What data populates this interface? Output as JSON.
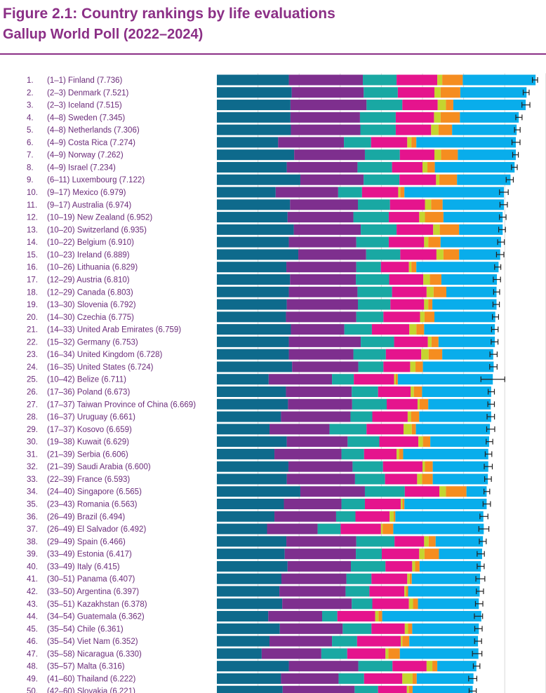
{
  "header": {
    "title": "Figure 2.1: Country rankings by life evaluations",
    "subtitle": "Gallup World Poll (2022–2024)"
  },
  "colors": {
    "accent": "#8b2f86",
    "segments": [
      "#0e6a8c",
      "#7e2f8e",
      "#19a8a3",
      "#e5148d",
      "#c5d52f",
      "#f58d20",
      "#09adeb"
    ],
    "error_bar": "#222222"
  },
  "chart_data": {
    "type": "bar",
    "orientation": "horizontal",
    "stacked": true,
    "title": "Figure 2.1: Country rankings by life evaluations",
    "subtitle": "Gallup World Poll (2022–2024)",
    "categories": [
      "Finland",
      "Denmark",
      "Iceland",
      "Sweden",
      "Netherlands",
      "Costa Rica",
      "Norway",
      "Israel",
      "Luxembourg",
      "Mexico",
      "Australia",
      "New Zealand",
      "Switzerland",
      "Belgium",
      "Ireland",
      "Lithuania",
      "Austria",
      "Canada",
      "Slovenia",
      "Czechia",
      "United Arab Emirates",
      "Germany",
      "United Kingdom",
      "United States",
      "Belize",
      "Poland",
      "Taiwan Province of China",
      "Uruguay",
      "Kosovo",
      "Kuwait",
      "Serbia",
      "Saudi Arabia",
      "France",
      "Singapore",
      "Romania",
      "Brazil",
      "El Salvador",
      "Spain",
      "Estonia",
      "Italy",
      "Panama",
      "Argentina",
      "Kazakhstan",
      "Guatemala",
      "Chile",
      "Viet Nam",
      "Nicaragua",
      "Malta",
      "Thailand",
      "Slovakia"
    ],
    "rows": [
      {
        "rank": "1.",
        "range": "(1–1)",
        "country": "Finland",
        "score": "7.736"
      },
      {
        "rank": "2.",
        "range": "(2–3)",
        "country": "Denmark",
        "score": "7.521"
      },
      {
        "rank": "3.",
        "range": "(2–3)",
        "country": "Iceland",
        "score": "7.515"
      },
      {
        "rank": "4.",
        "range": "(4–8)",
        "country": "Sweden",
        "score": "7.345"
      },
      {
        "rank": "5.",
        "range": "(4–8)",
        "country": "Netherlands",
        "score": "7.306"
      },
      {
        "rank": "6.",
        "range": "(4–9)",
        "country": "Costa Rica",
        "score": "7.274"
      },
      {
        "rank": "7.",
        "range": "(4–9)",
        "country": "Norway",
        "score": "7.262"
      },
      {
        "rank": "8.",
        "range": "(4–9)",
        "country": "Israel",
        "score": "7.234"
      },
      {
        "rank": "9.",
        "range": "(6–11)",
        "country": "Luxembourg",
        "score": "7.122"
      },
      {
        "rank": "10.",
        "range": "(9–17)",
        "country": "Mexico",
        "score": "6.979"
      },
      {
        "rank": "11.",
        "range": "(9–17)",
        "country": "Australia",
        "score": "6.974"
      },
      {
        "rank": "12.",
        "range": "(10–19)",
        "country": "New Zealand",
        "score": "6.952"
      },
      {
        "rank": "13.",
        "range": "(10–20)",
        "country": "Switzerland",
        "score": "6.935"
      },
      {
        "rank": "14.",
        "range": "(10–22)",
        "country": "Belgium",
        "score": "6.910"
      },
      {
        "rank": "15.",
        "range": "(10–23)",
        "country": "Ireland",
        "score": "6.889"
      },
      {
        "rank": "16.",
        "range": "(10–26)",
        "country": "Lithuania",
        "score": "6.829"
      },
      {
        "rank": "17.",
        "range": "(12–29)",
        "country": "Austria",
        "score": "6.810"
      },
      {
        "rank": "18.",
        "range": "(12–29)",
        "country": "Canada",
        "score": "6.803"
      },
      {
        "rank": "19.",
        "range": "(13–30)",
        "country": "Slovenia",
        "score": "6.792"
      },
      {
        "rank": "20.",
        "range": "(14–30)",
        "country": "Czechia",
        "score": "6.775"
      },
      {
        "rank": "21.",
        "range": "(14–33)",
        "country": "United Arab Emirates",
        "score": "6.759"
      },
      {
        "rank": "22.",
        "range": "(15–32)",
        "country": "Germany",
        "score": "6.753"
      },
      {
        "rank": "23.",
        "range": "(16–34)",
        "country": "United Kingdom",
        "score": "6.728"
      },
      {
        "rank": "24.",
        "range": "(16–35)",
        "country": "United States",
        "score": "6.724"
      },
      {
        "rank": "25.",
        "range": "(10–42)",
        "country": "Belize",
        "score": "6.711"
      },
      {
        "rank": "26.",
        "range": "(17–36)",
        "country": "Poland",
        "score": "6.673"
      },
      {
        "rank": "27.",
        "range": "(17–37)",
        "country": "Taiwan Province of China",
        "score": "6.669"
      },
      {
        "rank": "28.",
        "range": "(16–37)",
        "country": "Uruguay",
        "score": "6.661"
      },
      {
        "rank": "29.",
        "range": "(17–37)",
        "country": "Kosovo",
        "score": "6.659"
      },
      {
        "rank": "30.",
        "range": "(19–38)",
        "country": "Kuwait",
        "score": "6.629"
      },
      {
        "rank": "31.",
        "range": "(21–39)",
        "country": "Serbia",
        "score": "6.606"
      },
      {
        "rank": "32.",
        "range": "(21–39)",
        "country": "Saudi Arabia",
        "score": "6.600"
      },
      {
        "rank": "33.",
        "range": "(22–39)",
        "country": "France",
        "score": "6.593"
      },
      {
        "rank": "34.",
        "range": "(24–40)",
        "country": "Singapore",
        "score": "6.565"
      },
      {
        "rank": "35.",
        "range": "(23–43)",
        "country": "Romania",
        "score": "6.563"
      },
      {
        "rank": "36.",
        "range": "(26–49)",
        "country": "Brazil",
        "score": "6.494"
      },
      {
        "rank": "37.",
        "range": "(26–49)",
        "country": "El Salvador",
        "score": "6.492"
      },
      {
        "rank": "38.",
        "range": "(29–49)",
        "country": "Spain",
        "score": "6.466"
      },
      {
        "rank": "39.",
        "range": "(33–49)",
        "country": "Estonia",
        "score": "6.417"
      },
      {
        "rank": "40.",
        "range": "(33–49)",
        "country": "Italy",
        "score": "6.415"
      },
      {
        "rank": "41.",
        "range": "(30–51)",
        "country": "Panama",
        "score": "6.407"
      },
      {
        "rank": "42.",
        "range": "(33–50)",
        "country": "Argentina",
        "score": "6.397"
      },
      {
        "rank": "43.",
        "range": "(35–51)",
        "country": "Kazakhstan",
        "score": "6.378"
      },
      {
        "rank": "44.",
        "range": "(34–54)",
        "country": "Guatemala",
        "score": "6.362"
      },
      {
        "rank": "45.",
        "range": "(35–54)",
        "country": "Chile",
        "score": "6.361"
      },
      {
        "rank": "46.",
        "range": "(35–54)",
        "country": "Viet Nam",
        "score": "6.352"
      },
      {
        "rank": "47.",
        "range": "(35–58)",
        "country": "Nicaragua",
        "score": "6.330"
      },
      {
        "rank": "48.",
        "range": "(35–57)",
        "country": "Malta",
        "score": "6.316"
      },
      {
        "rank": "49.",
        "range": "(41–60)",
        "country": "Thailand",
        "score": "6.222"
      },
      {
        "rank": "50.",
        "range": "(42–60)",
        "country": "Slovakia",
        "score": "6.221"
      }
    ],
    "series": [
      {
        "values": [
          1.75,
          1.82,
          1.79,
          1.79,
          1.8,
          1.49,
          1.88,
          1.7,
          2.03,
          1.43,
          1.78,
          1.72,
          1.87,
          1.75,
          1.98,
          1.69,
          1.78,
          1.75,
          1.7,
          1.68,
          1.8,
          1.75,
          1.75,
          1.83,
          1.26,
          1.68,
          1.73,
          1.56,
          1.28,
          1.7,
          1.4,
          1.74,
          1.7,
          2.03,
          1.63,
          1.4,
          1.22,
          1.69,
          1.65,
          1.72,
          1.57,
          1.52,
          1.59,
          1.25,
          1.53,
          1.28,
          1.09,
          1.75,
          1.56,
          1.6
        ]
      },
      {
        "values": [
          1.8,
          1.75,
          1.85,
          1.69,
          1.69,
          1.6,
          1.72,
          1.72,
          1.54,
          1.52,
          1.65,
          1.6,
          1.63,
          1.64,
          1.65,
          1.7,
          1.6,
          1.67,
          1.73,
          1.71,
          1.3,
          1.75,
          1.57,
          1.61,
          1.54,
          1.6,
          1.56,
          1.69,
          1.46,
          1.48,
          1.63,
          1.56,
          1.66,
          1.57,
          1.4,
          1.5,
          1.23,
          1.7,
          1.73,
          1.54,
          1.58,
          1.61,
          1.69,
          1.31,
          1.53,
          1.52,
          1.45,
          1.69,
          1.4,
          1.75
        ]
      },
      {
        "values": [
          0.82,
          0.83,
          0.87,
          0.87,
          0.86,
          0.66,
          0.85,
          0.84,
          0.87,
          0.58,
          0.78,
          0.86,
          0.87,
          0.79,
          0.83,
          0.6,
          0.81,
          0.84,
          0.79,
          0.66,
          0.67,
          0.81,
          0.79,
          0.61,
          0.53,
          0.64,
          0.84,
          0.53,
          0.9,
          0.77,
          0.55,
          0.74,
          0.73,
          0.97,
          0.57,
          0.47,
          0.56,
          0.93,
          0.63,
          0.84,
          0.61,
          0.58,
          0.5,
          0.37,
          0.7,
          0.61,
          0.63,
          0.83,
          0.62,
          0.57
        ]
      },
      {
        "values": [
          0.99,
          0.89,
          0.86,
          0.93,
          0.86,
          0.88,
          0.84,
          0.74,
          0.89,
          0.88,
          0.85,
          0.74,
          0.89,
          0.86,
          0.88,
          0.68,
          0.83,
          0.84,
          0.82,
          0.89,
          0.91,
          0.82,
          0.86,
          0.65,
          0.98,
          0.79,
          0.75,
          0.86,
          0.9,
          0.95,
          0.79,
          0.96,
          0.78,
          0.84,
          0.87,
          0.83,
          0.98,
          0.72,
          0.91,
          0.65,
          0.87,
          0.85,
          0.89,
          0.92,
          0.81,
          1.06,
          0.93,
          0.83,
          0.93,
          0.7
        ]
      },
      {
        "values": [
          0.12,
          0.15,
          0.2,
          0.16,
          0.18,
          0.1,
          0.16,
          0.12,
          0.08,
          0.05,
          0.15,
          0.14,
          0.16,
          0.1,
          0.17,
          0.06,
          0.16,
          0.17,
          0.1,
          0.11,
          0.17,
          0.09,
          0.18,
          0.13,
          0.04,
          0.08,
          0.05,
          0.08,
          0.2,
          0.11,
          0.06,
          0.06,
          0.12,
          0.16,
          0.04,
          0.1,
          0.04,
          0.11,
          0.13,
          0.07,
          0.06,
          0.04,
          0.1,
          0.08,
          0.08,
          0.04,
          0.07,
          0.14,
          0.25,
          0.05
        ]
      },
      {
        "values": [
          0.5,
          0.48,
          0.18,
          0.47,
          0.33,
          0.12,
          0.41,
          0.18,
          0.43,
          0.1,
          0.28,
          0.45,
          0.47,
          0.3,
          0.38,
          0.12,
          0.28,
          0.31,
          0.1,
          0.24,
          0.19,
          0.17,
          0.33,
          0.18,
          0.05,
          0.2,
          0.21,
          0.2,
          0.1,
          0.18,
          0.1,
          0.19,
          0.26,
          0.5,
          0.05,
          0.04,
          0.26,
          0.17,
          0.35,
          0.11,
          0.05,
          0.05,
          0.12,
          0.09,
          0.1,
          0.17,
          0.28,
          0.12,
          0.1,
          0.09
        ]
      },
      {
        "values": [
          1.77,
          1.61,
          1.76,
          1.43,
          1.57,
          2.42,
          1.41,
          1.94,
          1.3,
          2.42,
          1.49,
          1.44,
          1.06,
          1.47,
          1.0,
          2.0,
          1.35,
          1.22,
          1.56,
          1.48,
          1.72,
          1.37,
          1.24,
          1.72,
          2.31,
          1.68,
          1.52,
          1.75,
          1.8,
          1.43,
          2.07,
          1.35,
          1.34,
          0.49,
          2.0,
          2.14,
          2.2,
          1.15,
          1.05,
          1.49,
          1.66,
          1.74,
          1.48,
          2.41,
          1.62,
          1.67,
          1.91,
          0.95,
          1.38,
          1.46
        ]
      }
    ],
    "ci": [
      [
        7.673,
        7.799
      ],
      [
        7.449,
        7.593
      ],
      [
        7.418,
        7.612
      ],
      [
        7.269,
        7.421
      ],
      [
        7.237,
        7.375
      ],
      [
        7.176,
        7.372
      ],
      [
        7.193,
        7.331
      ],
      [
        7.164,
        7.304
      ],
      [
        7.035,
        7.209
      ],
      [
        6.873,
        7.085
      ],
      [
        6.884,
        7.064
      ],
      [
        6.872,
        7.032
      ],
      [
        6.853,
        7.017
      ],
      [
        6.828,
        6.992
      ],
      [
        6.799,
        6.979
      ],
      [
        6.754,
        6.904
      ],
      [
        6.722,
        6.898
      ],
      [
        6.73,
        6.876
      ],
      [
        6.714,
        6.87
      ],
      [
        6.7,
        6.85
      ],
      [
        6.679,
        6.839
      ],
      [
        6.67,
        6.836
      ],
      [
        6.64,
        6.816
      ],
      [
        6.634,
        6.814
      ],
      [
        6.421,
        7.001
      ],
      [
        6.597,
        6.749
      ],
      [
        6.589,
        6.749
      ],
      [
        6.571,
        6.751
      ],
      [
        6.561,
        6.757
      ],
      [
        6.549,
        6.709
      ],
      [
        6.526,
        6.686
      ],
      [
        6.502,
        6.698
      ],
      [
        6.511,
        6.675
      ],
      [
        6.495,
        6.635
      ],
      [
        6.473,
        6.653
      ],
      [
        6.397,
        6.591
      ],
      [
        6.37,
        6.614
      ],
      [
        6.382,
        6.55
      ],
      [
        6.329,
        6.505
      ],
      [
        6.33,
        6.5
      ],
      [
        6.298,
        6.516
      ],
      [
        6.31,
        6.484
      ],
      [
        6.288,
        6.468
      ],
      [
        6.262,
        6.462
      ],
      [
        6.271,
        6.451
      ],
      [
        6.267,
        6.437
      ],
      [
        6.215,
        6.445
      ],
      [
        6.236,
        6.396
      ],
      [
        6.123,
        6.321
      ],
      [
        6.134,
        6.308
      ]
    ],
    "xlim": [
      0,
      8
    ],
    "grid": true
  }
}
